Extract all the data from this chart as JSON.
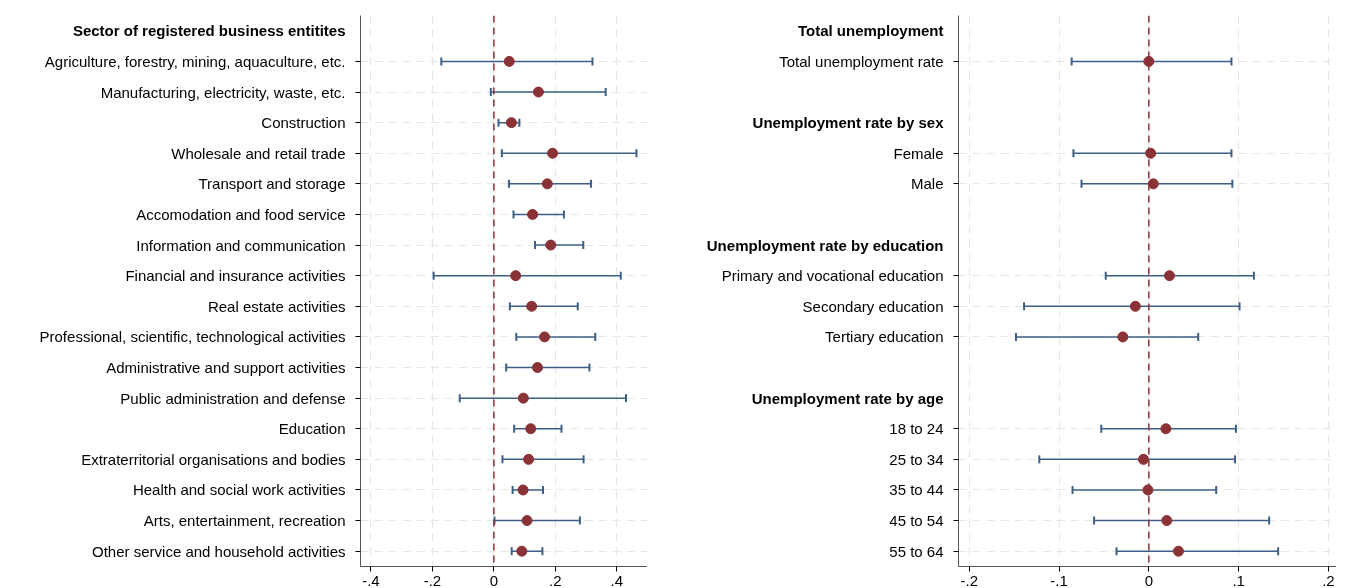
{
  "chart_data": [
    {
      "type": "scatter",
      "orientation": "horizontal",
      "marker": "circle",
      "grid": true,
      "categories": [
        "Sector of registered business entitites",
        "Agriculture, forestry, mining, aquaculture, etc.",
        "Manufacturing, electricity, waste, etc.",
        "Construction",
        "Wholesale and retail trade",
        "Transport and storage",
        "Accomodation and food service",
        "Information and communication",
        "Financial and insurance activities",
        "Real estate activities",
        "Professional, scientific, technological activities",
        "Administrative and support activities",
        "Public administration and defense",
        "Education",
        "Extraterritorial organisations and bodies",
        "Health and social work activities",
        "Arts, entertainment, recreation",
        "Other service and household activities"
      ],
      "series": [
        {
          "color": "#8b3236",
          "values": [
            null,
            0.05,
            0.145,
            0.057,
            0.191,
            0.174,
            0.126,
            0.185,
            0.071,
            0.123,
            0.165,
            0.142,
            0.096,
            0.12,
            0.113,
            0.095,
            0.108,
            0.091
          ],
          "errors": [
            null,
            [
              -0.171,
              0.321
            ],
            [
              -0.01,
              0.364
            ],
            [
              0.015,
              0.083
            ],
            [
              0.026,
              0.464
            ],
            [
              0.049,
              0.316
            ],
            [
              0.064,
              0.228
            ],
            [
              0.134,
              0.291
            ],
            [
              -0.196,
              0.413
            ],
            [
              0.052,
              0.273
            ],
            [
              0.073,
              0.33
            ],
            [
              0.04,
              0.311
            ],
            [
              -0.111,
              0.43
            ],
            [
              0.066,
              0.22
            ],
            [
              0.028,
              0.292
            ],
            [
              0.061,
              0.16
            ],
            [
              0.002,
              0.28
            ],
            [
              0.058,
              0.158
            ]
          ]
        }
      ],
      "xlim": [
        -0.434,
        0.5
      ],
      "xticks": [
        {
          "value": -0.4,
          "label": "-.4"
        },
        {
          "value": -0.2,
          "label": "-.2"
        },
        0,
        {
          "value": 0.2,
          "label": ".2"
        },
        {
          "value": 0.4,
          "label": ".4"
        }
      ],
      "ref_lines": [
        {
          "axis": "x",
          "value": 0,
          "color": "#8b3236",
          "line_style": "dashed"
        }
      ]
    },
    {
      "type": "scatter",
      "orientation": "horizontal",
      "marker": "circle",
      "grid": true,
      "categories": [
        "Total unemployment",
        "Total unemployment rate",
        null,
        "Unemployment rate by sex",
        "Female",
        "Male",
        null,
        "Unemployment rate by education",
        "Primary and vocational education",
        "Secondary education",
        "Tertiary education",
        null,
        "Unemployment rate by age",
        "18 to 24",
        "25 to 34",
        "35 to 44",
        "45 to 54",
        "55 to 64"
      ],
      "series": [
        {
          "color": "#8b3236",
          "values": [
            null,
            0.0,
            null,
            null,
            0.002,
            0.005,
            null,
            null,
            0.023,
            -0.015,
            -0.029,
            null,
            null,
            0.019,
            -0.006,
            -0.001,
            0.02,
            0.033
          ],
          "errors": [
            null,
            [
              -0.086,
              0.092
            ],
            null,
            null,
            [
              -0.084,
              0.092
            ],
            [
              -0.075,
              0.093
            ],
            null,
            null,
            [
              -0.048,
              0.117
            ],
            [
              -0.139,
              0.101
            ],
            [
              -0.148,
              0.055
            ],
            null,
            null,
            [
              -0.053,
              0.097
            ],
            [
              -0.122,
              0.096
            ],
            [
              -0.085,
              0.075
            ],
            [
              -0.061,
              0.134
            ],
            [
              -0.036,
              0.144
            ]
          ]
        }
      ],
      "xlim": [
        -0.212,
        0.209
      ],
      "xticks": [
        {
          "value": -0.2,
          "label": "-.2"
        },
        {
          "value": -0.1,
          "label": "-.1"
        },
        0,
        {
          "value": 0.1,
          "label": ".1"
        },
        {
          "value": 0.2,
          "label": ".2"
        }
      ],
      "ref_lines": [
        {
          "axis": "x",
          "value": 0,
          "color": "#8b3236",
          "line_style": "dashed"
        }
      ]
    }
  ]
}
